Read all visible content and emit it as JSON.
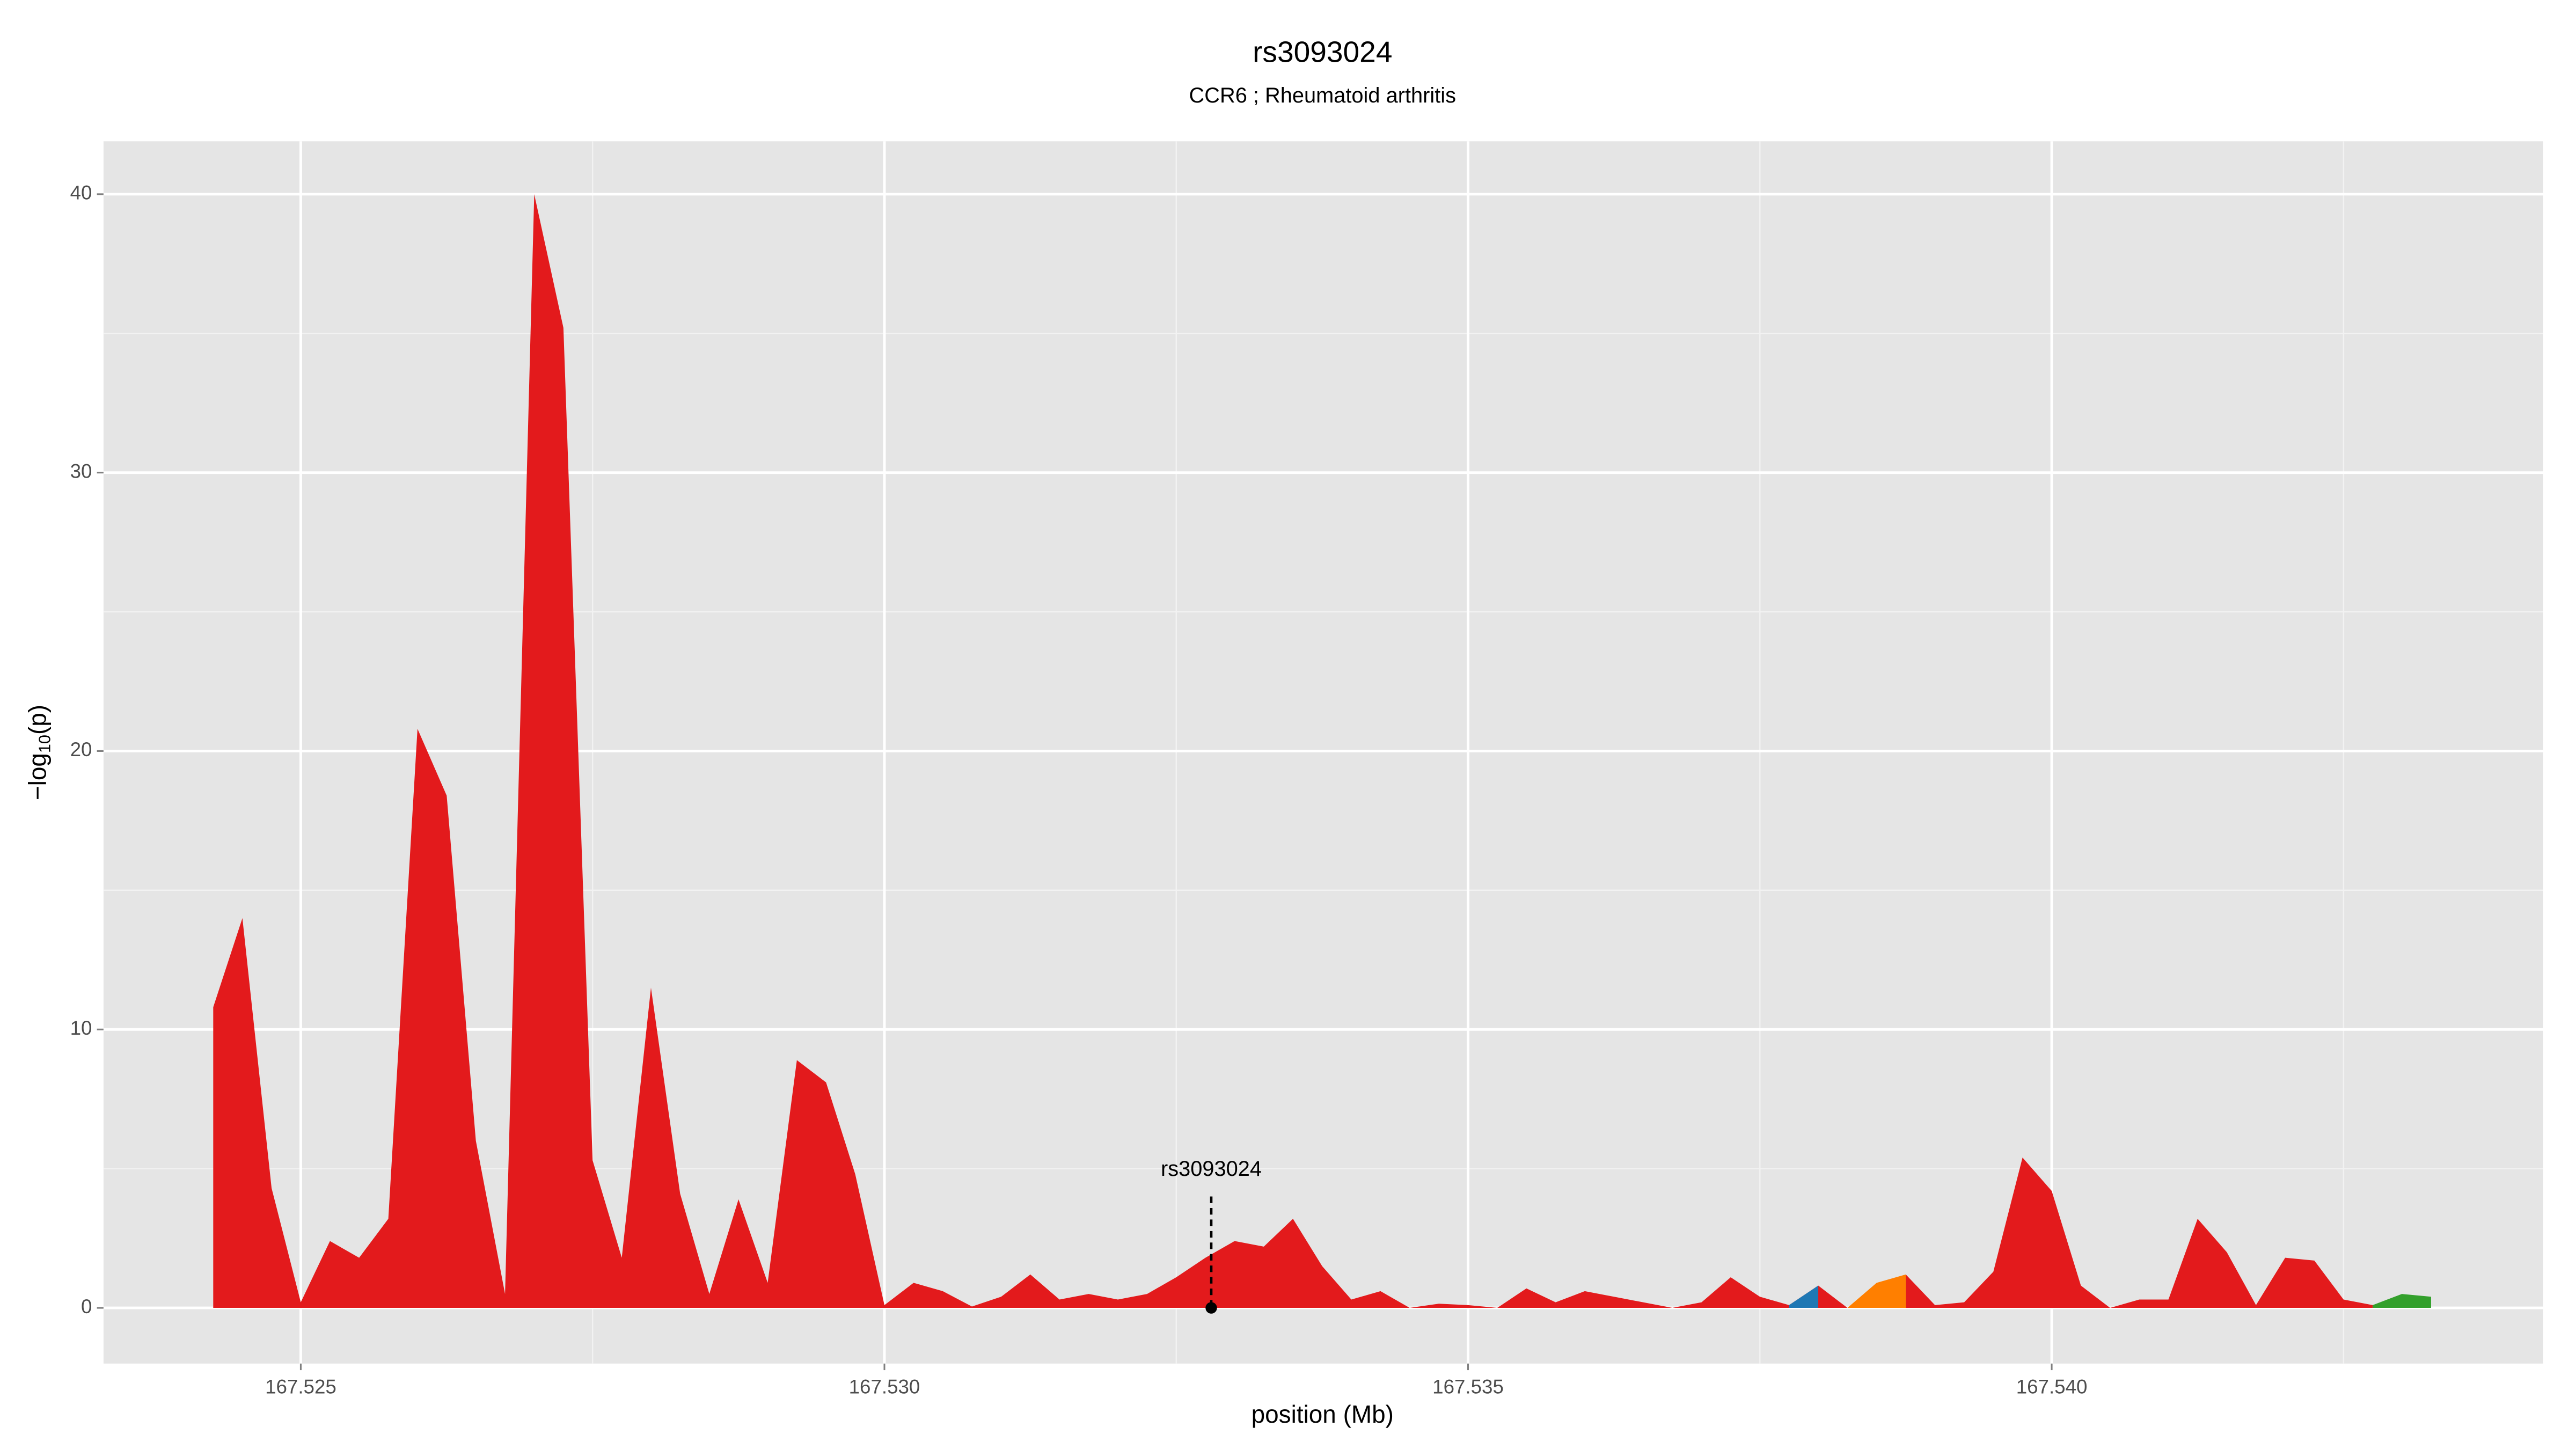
{
  "chart_data": {
    "type": "area",
    "title": "rs3093024",
    "subtitle": "CCR6 ; Rheumatoid arthritis",
    "xlabel": "position (Mb)",
    "ylabel_parts": [
      "−log",
      "10",
      "(p)"
    ],
    "xlim": [
      167.52331,
      167.54421
    ],
    "ylim": [
      -2,
      41.9
    ],
    "xticks": [
      167.525,
      {
        "value": 167.53,
        "label": "167.530"
      },
      167.535,
      {
        "value": 167.54,
        "label": "167.540"
      }
    ],
    "xminor": [
      167.5275,
      167.5325,
      167.5375,
      167.5425
    ],
    "yticks": [
      0,
      10,
      20,
      30,
      40
    ],
    "yminor": [
      5,
      15,
      25,
      35
    ],
    "grid": true,
    "x": [
      167.52425,
      167.5245,
      167.52475,
      167.525,
      167.52525,
      167.5255,
      167.52575,
      167.526,
      167.52625,
      167.5265,
      167.52675,
      167.527,
      167.52725,
      167.5275,
      167.52775,
      167.528,
      167.52825,
      167.5285,
      167.52875,
      167.529,
      167.52925,
      167.5295,
      167.52975,
      167.53,
      167.53025,
      167.5305,
      167.53075,
      167.531,
      167.53125,
      167.5315,
      167.53175,
      167.532,
      167.53225,
      167.5325,
      167.53275,
      167.533,
      167.53325,
      167.5335,
      167.53375,
      167.534,
      167.53425,
      167.5345,
      167.53475,
      167.535,
      167.53525,
      167.5355,
      167.53575,
      167.536,
      167.53625,
      167.5365,
      167.53675,
      167.537,
      167.53725,
      167.5375,
      167.53775,
      167.538,
      167.53825,
      167.5385,
      167.53875,
      167.539,
      167.53925,
      167.5395,
      167.53975,
      167.54,
      167.54025,
      167.5405,
      167.54075,
      167.541,
      167.54125,
      167.5415,
      167.54175,
      167.542,
      167.54225,
      167.5425,
      167.54275,
      167.543,
      167.54325
    ],
    "series": [
      {
        "color": "#e31a1c",
        "values": [
          10.8,
          14.0,
          4.3,
          0.2,
          2.4,
          1.8,
          3.2,
          20.8,
          18.4,
          6.0,
          0.5,
          40.0,
          35.2,
          5.3,
          1.8,
          11.5,
          4.1,
          0.5,
          3.9,
          0.9,
          8.9,
          8.1,
          4.8,
          0.1,
          0.9,
          0.6,
          0.05,
          0.4,
          1.2,
          0.3,
          0.5,
          0.3,
          0.5,
          1.1,
          1.8,
          2.4,
          2.2,
          3.2,
          1.5,
          0.3,
          0.6,
          0.0,
          0.15,
          0.1,
          0.0,
          0.7,
          0.2,
          0.6,
          0.4,
          0.2,
          0.0,
          0.2,
          1.1,
          0.4,
          0.1,
          0.8,
          0.0,
          null,
          1.2,
          0.1,
          0.2,
          1.3,
          5.4,
          4.2,
          0.8,
          0.0,
          0.3,
          0.3,
          3.2,
          2.0,
          0.1,
          1.8,
          1.7,
          0.3,
          0.1,
          null,
          null
        ]
      },
      {
        "color": "#1f78b4",
        "values": [
          null,
          null,
          null,
          null,
          null,
          null,
          null,
          null,
          null,
          null,
          null,
          null,
          null,
          null,
          null,
          null,
          null,
          null,
          null,
          null,
          null,
          null,
          null,
          null,
          null,
          null,
          null,
          null,
          null,
          null,
          null,
          null,
          null,
          null,
          null,
          null,
          null,
          null,
          null,
          null,
          null,
          null,
          null,
          null,
          null,
          null,
          null,
          null,
          null,
          null,
          null,
          null,
          null,
          null,
          0.1,
          0.8,
          null,
          null,
          null,
          null,
          null,
          null,
          null,
          null,
          null,
          null,
          null,
          null,
          null,
          null,
          null,
          null,
          null,
          null,
          null,
          null,
          null
        ]
      },
      {
        "color": "#ff7f00",
        "values": [
          null,
          null,
          null,
          null,
          null,
          null,
          null,
          null,
          null,
          null,
          null,
          null,
          null,
          null,
          null,
          null,
          null,
          null,
          null,
          null,
          null,
          null,
          null,
          null,
          null,
          null,
          null,
          null,
          null,
          null,
          null,
          null,
          null,
          null,
          null,
          null,
          null,
          null,
          null,
          null,
          null,
          null,
          null,
          null,
          null,
          null,
          null,
          null,
          null,
          null,
          null,
          null,
          null,
          null,
          null,
          null,
          0.0,
          0.9,
          1.2,
          null,
          null,
          null,
          null,
          null,
          null,
          null,
          null,
          null,
          null,
          null,
          null,
          null,
          null,
          null,
          null,
          null,
          null
        ]
      },
      {
        "color": "#33a02c",
        "values": [
          null,
          null,
          null,
          null,
          null,
          null,
          null,
          null,
          null,
          null,
          null,
          null,
          null,
          null,
          null,
          null,
          null,
          null,
          null,
          null,
          null,
          null,
          null,
          null,
          null,
          null,
          null,
          null,
          null,
          null,
          null,
          null,
          null,
          null,
          null,
          null,
          null,
          null,
          null,
          null,
          null,
          null,
          null,
          null,
          null,
          null,
          null,
          null,
          null,
          null,
          null,
          null,
          null,
          null,
          null,
          null,
          null,
          null,
          null,
          null,
          null,
          null,
          null,
          null,
          null,
          null,
          null,
          null,
          null,
          null,
          null,
          null,
          null,
          null,
          0.1,
          0.5,
          0.4
        ]
      }
    ],
    "annotation": {
      "text": "rs3093024",
      "x": 167.5328,
      "y": 0,
      "line_top": 4
    }
  }
}
